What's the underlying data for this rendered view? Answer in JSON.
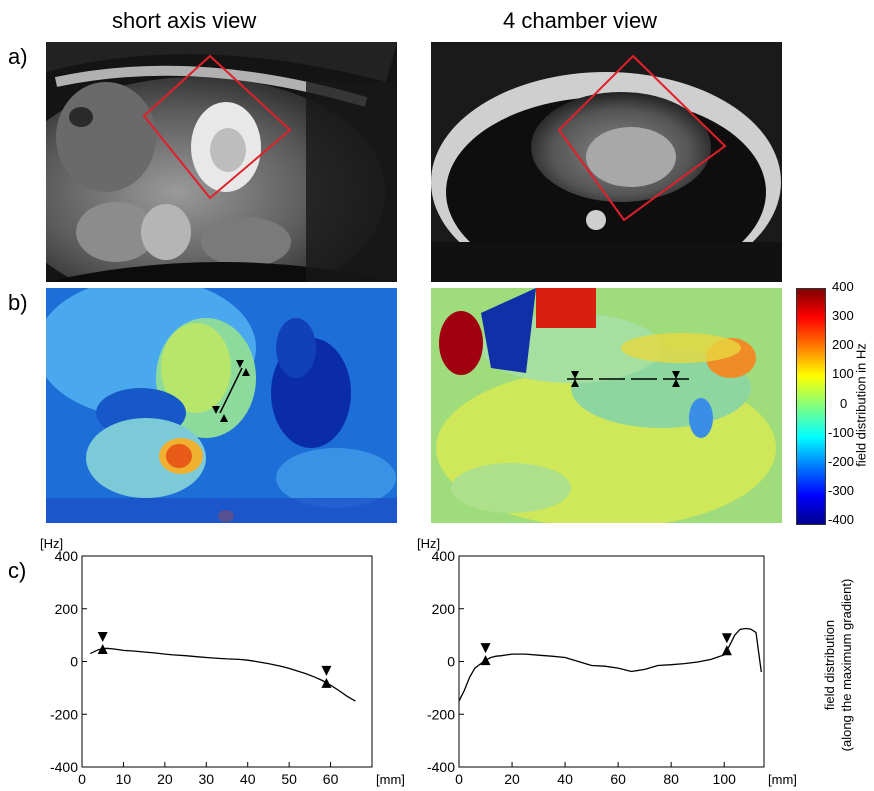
{
  "columns": [
    "short axis view",
    "4 chamber view"
  ],
  "row_labels": [
    "a)",
    "b)",
    "c)"
  ],
  "colorbar": {
    "label": "field distribution in Hz",
    "ticks": [
      400,
      300,
      200,
      100,
      0,
      -100,
      -200,
      -300,
      -400
    ]
  },
  "side_label": {
    "line1": "field distribution",
    "line2": "(along the maximum gradient)"
  },
  "chart_data": [
    {
      "type": "line",
      "ylabel": "[Hz]",
      "xlabel": "[mm]",
      "xlim": [
        0,
        70
      ],
      "ylim": [
        -400,
        400
      ],
      "xticks": [
        0,
        10,
        20,
        30,
        40,
        50,
        60
      ],
      "yticks": [
        400,
        200,
        0,
        -200,
        -400
      ],
      "x": [
        2,
        4,
        6,
        8,
        10,
        12,
        15,
        18,
        20,
        22,
        25,
        28,
        30,
        32,
        35,
        38,
        40,
        42,
        45,
        48,
        50,
        52,
        54,
        56,
        58,
        60,
        62,
        64,
        66
      ],
      "y": [
        30,
        45,
        50,
        47,
        42,
        40,
        36,
        32,
        28,
        25,
        22,
        18,
        15,
        13,
        10,
        8,
        5,
        0,
        -8,
        -18,
        -26,
        -36,
        -46,
        -58,
        -72,
        -90,
        -110,
        -132,
        -150
      ],
      "markers": [
        5,
        59
      ]
    },
    {
      "type": "line",
      "ylabel": "[Hz]",
      "xlabel": "[mm]",
      "xlim": [
        0,
        115
      ],
      "ylim": [
        -400,
        400
      ],
      "xticks": [
        0,
        20,
        40,
        60,
        80,
        100
      ],
      "yticks": [
        400,
        200,
        0,
        -200,
        -400
      ],
      "x": [
        0,
        2,
        4,
        6,
        8,
        10,
        12,
        14,
        16,
        18,
        20,
        25,
        30,
        35,
        40,
        45,
        50,
        55,
        60,
        65,
        70,
        75,
        80,
        85,
        90,
        95,
        100,
        102,
        104,
        106,
        108,
        110,
        112,
        114
      ],
      "y": [
        -150,
        -110,
        -60,
        -25,
        -10,
        5,
        15,
        20,
        22,
        25,
        28,
        28,
        24,
        20,
        15,
        0,
        -15,
        -18,
        -25,
        -38,
        -30,
        -15,
        -12,
        -8,
        -2,
        8,
        25,
        60,
        100,
        122,
        125,
        123,
        110,
        -40
      ],
      "markers": [
        10,
        101
      ]
    }
  ]
}
